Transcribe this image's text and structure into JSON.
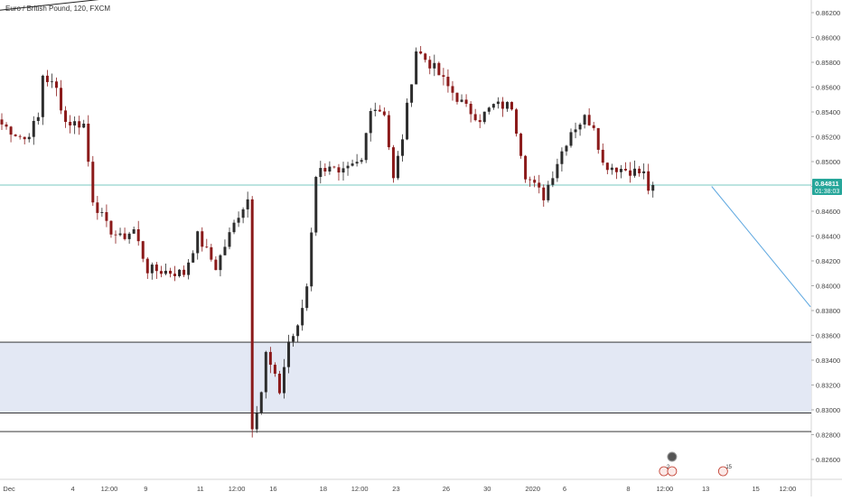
{
  "chart_data": {
    "type": "candlestick",
    "title": "Euro / British Pound, 120, FXCM",
    "colors": {
      "up": "#2d2d2d",
      "down": "#8b1a1a",
      "price_line": "#4db6ac",
      "price_tag": "#26a69a",
      "zone_fill": "#e3e8f4",
      "zone_border": "#1a1a1a",
      "axis_text": "#444444",
      "trend_line": "#5fa8e0"
    },
    "current_price": {
      "value": 0.84811,
      "label": "0.84811",
      "countdown": "01:38:03"
    },
    "y_axis": {
      "ticks": [
        0.862,
        0.86,
        0.858,
        0.856,
        0.854,
        0.852,
        0.85,
        0.848,
        0.846,
        0.844,
        0.842,
        0.84,
        0.838,
        0.836,
        0.834,
        0.832,
        0.83,
        0.828,
        0.826
      ],
      "tick_labels": [
        "0.86200",
        "0.86000",
        "0.85800",
        "0.85600",
        "0.85400",
        "0.85200",
        "0.85000",
        "0.84800",
        "0.84600",
        "0.84400",
        "0.84200",
        "0.84000",
        "0.83800",
        "0.83600",
        "0.83400",
        "0.83200",
        "0.83000",
        "0.82800",
        "0.82600"
      ],
      "range": [
        0.8245,
        0.8635
      ]
    },
    "x_axis": {
      "tick_labels": [
        {
          "label": "Dec",
          "index": 2
        },
        {
          "label": "4",
          "index": 16
        },
        {
          "label": "12:00",
          "index": 24
        },
        {
          "label": "9",
          "index": 32
        },
        {
          "label": "11",
          "index": 44
        },
        {
          "label": "12:00",
          "index": 52
        },
        {
          "label": "16",
          "index": 60
        },
        {
          "label": "18",
          "index": 71
        },
        {
          "label": "12:00",
          "index": 79
        },
        {
          "label": "23",
          "index": 87
        },
        {
          "label": "26",
          "index": 98
        },
        {
          "label": "30",
          "index": 107
        },
        {
          "label": "2020",
          "index": 117
        },
        {
          "label": "6",
          "index": 124
        },
        {
          "label": "8",
          "index": 138
        },
        {
          "label": "12:00",
          "index": 146
        },
        {
          "label": "13",
          "index": 155
        },
        {
          "label": "15",
          "index": 166
        },
        {
          "label": "12:00",
          "index": 173
        }
      ]
    },
    "zones": [
      {
        "top": 0.83545,
        "bottom": 0.82975,
        "filled": true
      },
      {
        "top": 0.82825,
        "bottom": 0.82825,
        "filled": false
      }
    ],
    "keypoints": [
      [
        0,
        0.853
      ],
      [
        5,
        0.8518
      ],
      [
        8,
        0.8535
      ],
      [
        9,
        0.857
      ],
      [
        12,
        0.8558
      ],
      [
        14,
        0.8532
      ],
      [
        18,
        0.853
      ],
      [
        20,
        0.847
      ],
      [
        23,
        0.8448
      ],
      [
        26,
        0.8438
      ],
      [
        29,
        0.8445
      ],
      [
        32,
        0.8413
      ],
      [
        35,
        0.8412
      ],
      [
        40,
        0.841
      ],
      [
        43,
        0.844
      ],
      [
        47,
        0.8415
      ],
      [
        52,
        0.8458
      ],
      [
        54,
        0.847
      ],
      [
        55,
        0.8288
      ],
      [
        57,
        0.8315
      ],
      [
        58,
        0.8345
      ],
      [
        61,
        0.8315
      ],
      [
        63,
        0.8355
      ],
      [
        65,
        0.8365
      ],
      [
        67,
        0.84
      ],
      [
        69,
        0.849
      ],
      [
        72,
        0.8498
      ],
      [
        74,
        0.8488
      ],
      [
        79,
        0.85
      ],
      [
        81,
        0.8545
      ],
      [
        84,
        0.854
      ],
      [
        86,
        0.8485
      ],
      [
        88,
        0.852
      ],
      [
        91,
        0.859
      ],
      [
        95,
        0.8575
      ],
      [
        98,
        0.856
      ],
      [
        102,
        0.8543
      ],
      [
        105,
        0.8535
      ],
      [
        108,
        0.8545
      ],
      [
        112,
        0.8545
      ],
      [
        115,
        0.849
      ],
      [
        117,
        0.848
      ],
      [
        119,
        0.8472
      ],
      [
        122,
        0.85
      ],
      [
        125,
        0.8525
      ],
      [
        128,
        0.8535
      ],
      [
        130,
        0.853
      ],
      [
        132,
        0.8498
      ],
      [
        135,
        0.8495
      ],
      [
        138,
        0.8493
      ],
      [
        141,
        0.849
      ],
      [
        142,
        0.8478
      ],
      [
        143,
        0.8481
      ]
    ],
    "trend_line": {
      "from": [
        156.3,
        0.848
      ],
      "to": [
        178,
        0.8383
      ]
    },
    "top_line": {
      "from": [
        0,
        0.8622
      ],
      "to": [
        28,
        0.8633
      ]
    },
    "events": [
      {
        "index": 147.6,
        "label": "",
        "style": "dark"
      },
      {
        "index": 145.8,
        "label": "2",
        "style": "ring"
      },
      {
        "index": 147.6,
        "label": "",
        "style": "ring"
      },
      {
        "index": 158.8,
        "label": "15",
        "style": "ring"
      }
    ]
  }
}
